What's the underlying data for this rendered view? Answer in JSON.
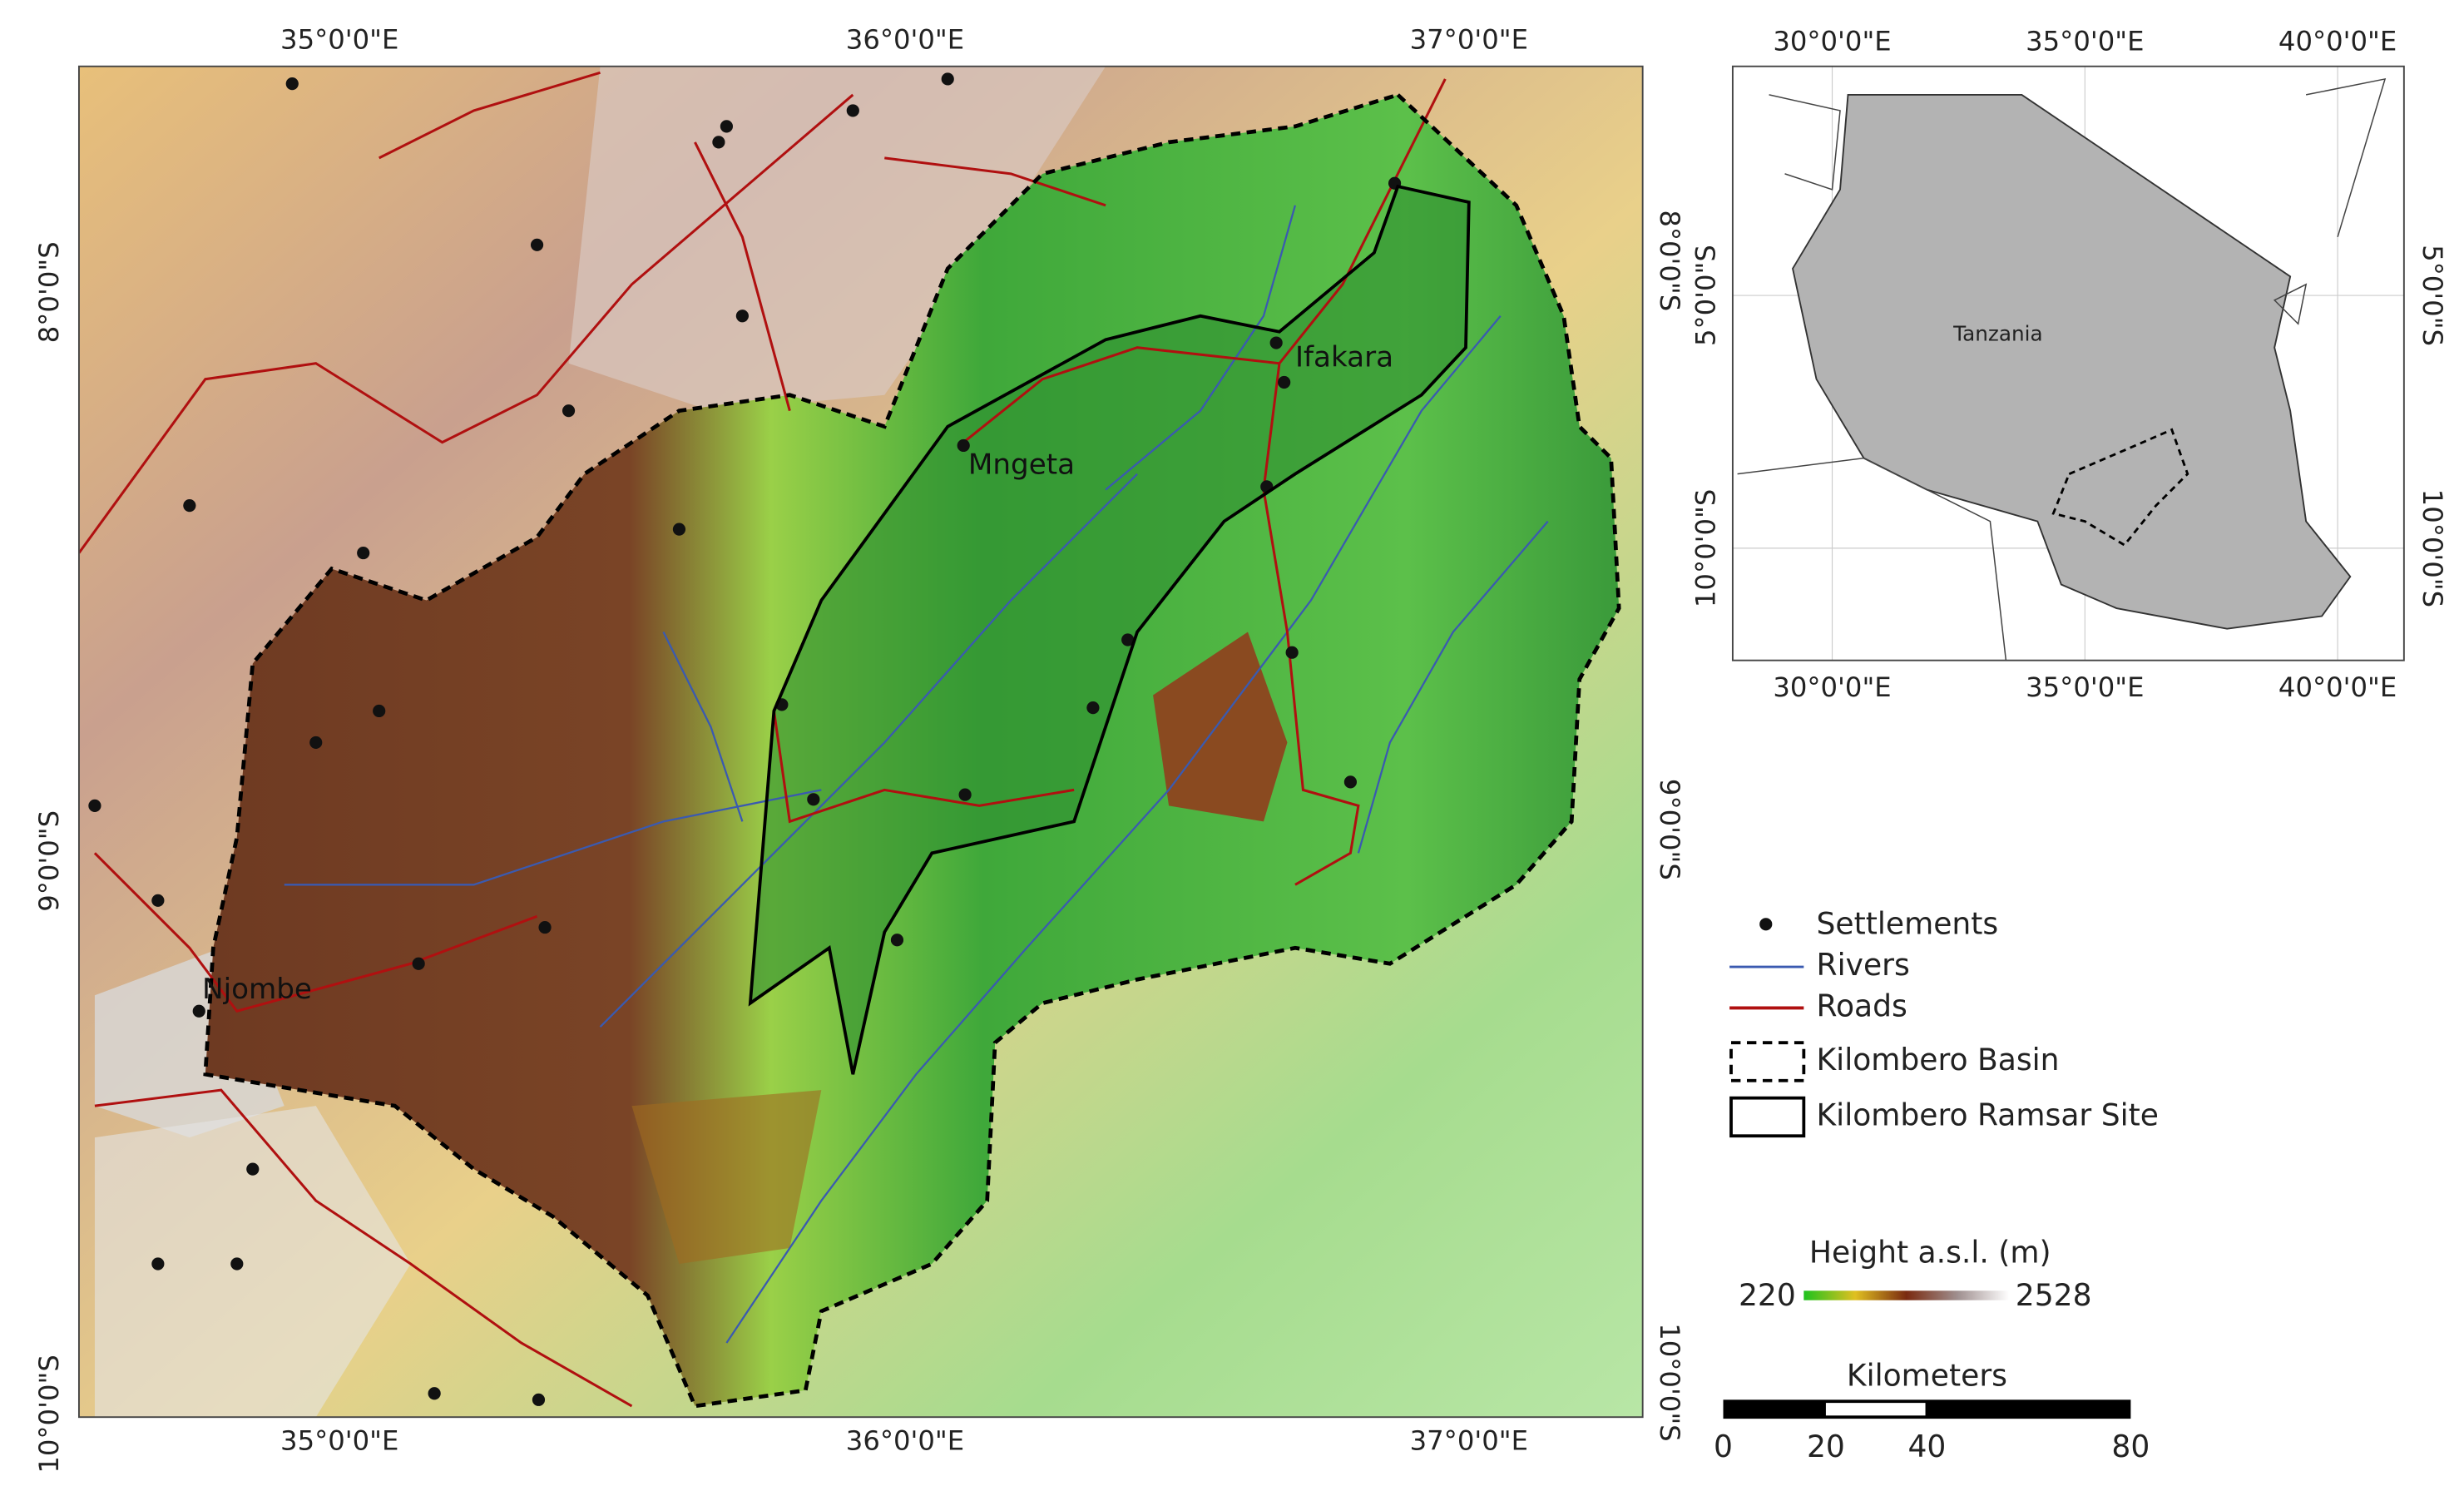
{
  "main_map": {
    "x_labels_top": [
      "35°0'0\"E",
      "36°0'0\"E",
      "37°0'0\"E"
    ],
    "x_labels_bottom": [
      "35°0'0\"E",
      "36°0'0\"E",
      "37°0'0\"E"
    ],
    "y_labels_left": [
      "8°0'0\"S",
      "9°0'0\"S",
      "10°0'0\"S"
    ],
    "y_labels_right": [
      "8°0'0\"S",
      "9°0'0\"S",
      "10°0'0\"S"
    ],
    "places": [
      "Ifakara",
      "Mngeta",
      "Njombe"
    ]
  },
  "inset_map": {
    "x_labels_top": [
      "30°0'0\"E",
      "35°0'0\"E",
      "40°0'0\"E"
    ],
    "x_labels_bottom": [
      "30°0'0\"E",
      "35°0'0\"E",
      "40°0'0\"E"
    ],
    "y_labels_left": [
      "5°0'0\"S",
      "10°0'0\"S"
    ],
    "y_labels_right": [
      "5°0'0\"S",
      "10°0'0\"S"
    ],
    "country": "Tanzania"
  },
  "legend": {
    "items": [
      "Settlements",
      "Rivers",
      "Roads",
      "Kilombero Basin",
      "Kilombero Ramsar Site"
    ]
  },
  "colorbar": {
    "title": "Height a.s.l. (m)",
    "min_label": "220",
    "max_label": "2528"
  },
  "scale_bar": {
    "title": "Kilometers",
    "labels": [
      "0",
      "20",
      "40",
      "80"
    ]
  }
}
